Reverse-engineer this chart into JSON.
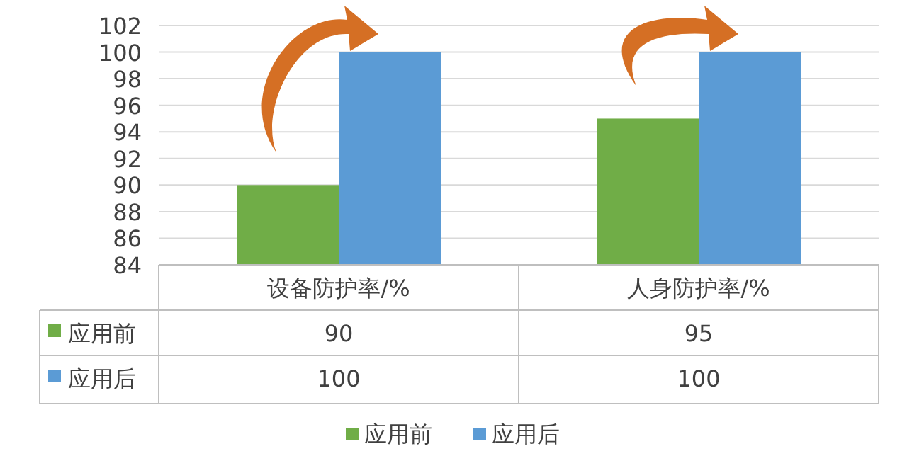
{
  "chart_data": {
    "type": "bar",
    "categories": [
      "设备防护率/%",
      "人身防护率/%"
    ],
    "series": [
      {
        "name": "应用前",
        "color": "#70ad47",
        "values": [
          90,
          95
        ]
      },
      {
        "name": "应用后",
        "color": "#5b9bd5",
        "values": [
          100,
          100
        ]
      }
    ],
    "ylim": [
      84,
      102
    ],
    "yticks": [
      84,
      86,
      88,
      90,
      92,
      94,
      96,
      98,
      100,
      102
    ],
    "grid": "y",
    "legend": "bottom",
    "data_labels": true
  }
}
